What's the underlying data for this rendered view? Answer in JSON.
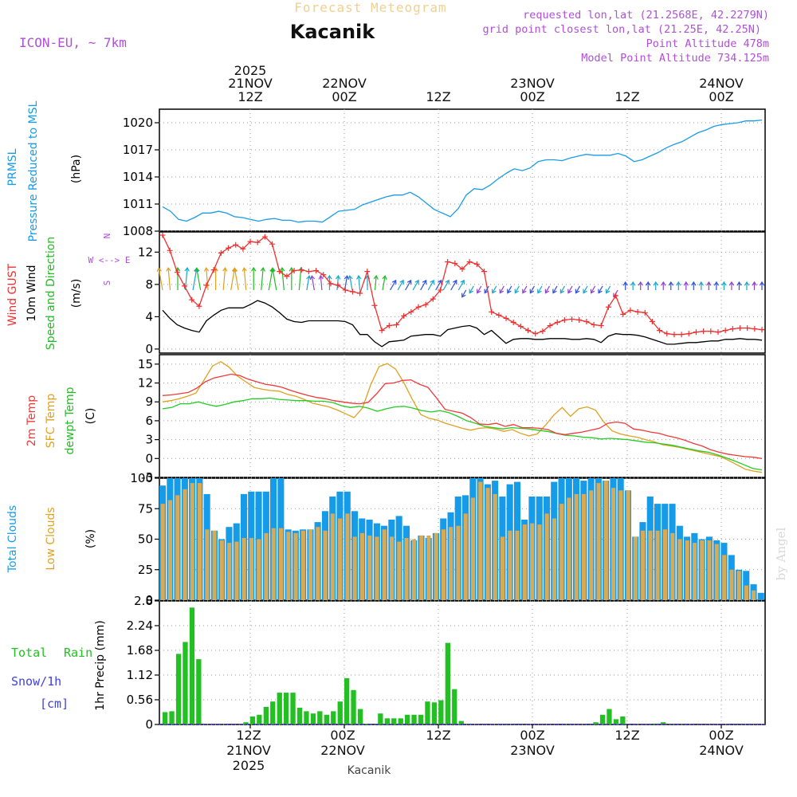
{
  "header": {
    "subtitle": "Forecast Meteogram",
    "location": "Kacanik",
    "model": "ICON-EU, ~ 7km",
    "requested": "requested lon,lat (21.2568E, 42.2279N)",
    "grid_point": "grid point closest lon,lat (21.25E, 42.25N)",
    "point_altitude": "Point Altitude 478m",
    "model_altitude": "Model Point Altitude 734.125m",
    "footer_location": "Kacanik",
    "watermark": "by Angel"
  },
  "colors": {
    "pressure": "#1a9be8",
    "gust": "#f03030",
    "wind": "#000000",
    "temp2m": "#f03a3a",
    "sfc_temp": "#e0a020",
    "dewpoint": "#22cc22",
    "total_clouds": "#169be8",
    "low_clouds": "#d9aa55",
    "rain": "#22c022",
    "snow": "#4040e0",
    "purple": "#b050d8",
    "title_yellow": "#f0d090"
  },
  "time_axis": {
    "top_labels": [
      {
        "year": "2025",
        "day": "21NOV",
        "hour": "12Z"
      },
      {
        "year": "",
        "day": "22NOV",
        "hour": "00Z"
      },
      {
        "year": "",
        "day": "",
        "hour": "12Z"
      },
      {
        "year": "",
        "day": "23NOV",
        "hour": "00Z"
      },
      {
        "year": "",
        "day": "",
        "hour": "12Z"
      },
      {
        "year": "",
        "day": "24NOV",
        "hour": "00Z"
      }
    ],
    "bottom_labels": [
      {
        "hour": "12Z",
        "day": "21NOV",
        "year": "2025"
      },
      {
        "hour": "00Z",
        "day": "22NOV",
        "year": ""
      },
      {
        "hour": "12Z",
        "day": "",
        "year": ""
      },
      {
        "hour": "00Z",
        "day": "23NOV",
        "year": ""
      },
      {
        "hour": "12Z",
        "day": "",
        "year": ""
      },
      {
        "hour": "00Z",
        "day": "24NOV",
        "year": ""
      }
    ]
  },
  "chart_data": [
    {
      "type": "line",
      "id": "pressure",
      "ylabels": [
        "PRMSL",
        "Pressure Reduced to MSL"
      ],
      "unit": "(hPa)",
      "ylim": [
        1008,
        1021.5
      ],
      "yticks": [
        1008,
        1011,
        1014,
        1017,
        1020
      ],
      "values": [
        1010.7,
        1010.2,
        1009.3,
        1009.1,
        1009.5,
        1010.0,
        1010.0,
        1010.2,
        1010.0,
        1009.6,
        1009.5,
        1009.3,
        1009.1,
        1009.3,
        1009.4,
        1009.2,
        1009.2,
        1009.0,
        1009.1,
        1009.1,
        1009.0,
        1009.6,
        1010.2,
        1010.3,
        1010.4,
        1010.9,
        1011.2,
        1011.5,
        1011.8,
        1012.0,
        1012.0,
        1012.3,
        1011.8,
        1011.1,
        1010.4,
        1010.0,
        1009.6,
        1010.5,
        1012.0,
        1012.7,
        1012.6,
        1013.1,
        1013.8,
        1014.4,
        1014.9,
        1014.7,
        1015.0,
        1015.7,
        1015.9,
        1015.9,
        1015.8,
        1016.1,
        1016.3,
        1016.5,
        1016.4,
        1016.4,
        1016.4,
        1016.6,
        1016.3,
        1015.7,
        1015.9,
        1016.3,
        1016.7,
        1017.2,
        1017.6,
        1017.9,
        1018.4,
        1018.9,
        1019.2,
        1019.6,
        1019.8,
        1019.9,
        1020.0,
        1020.2,
        1020.2,
        1020.3
      ]
    },
    {
      "type": "line",
      "id": "wind",
      "ylabels": [
        "Wind GUST",
        "10m Wind",
        "Speed and Direction"
      ],
      "unit": "(m/s)",
      "compass": {
        "north": "N",
        "south": "S",
        "west": "W <--> E"
      },
      "ylim": [
        -0.5,
        14.5
      ],
      "yticks": [
        0,
        4,
        8,
        12
      ],
      "gust": [
        14.1,
        12.2,
        9.5,
        7.8,
        6.1,
        5.3,
        7.9,
        9.8,
        11.9,
        12.5,
        12.9,
        12.4,
        13.3,
        13.2,
        13.9,
        13.0,
        9.6,
        9.0,
        9.7,
        9.8,
        9.6,
        9.7,
        9.2,
        8.1,
        7.9,
        7.3,
        7.1,
        6.9,
        9.6,
        5.4,
        2.3,
        2.9,
        3.0,
        4.1,
        4.6,
        5.2,
        5.5,
        6.2,
        7.3,
        10.8,
        10.6,
        9.9,
        10.8,
        10.5,
        9.6,
        4.6,
        4.2,
        3.8,
        3.3,
        2.8,
        2.3,
        1.9,
        2.2,
        2.9,
        3.3,
        3.6,
        3.7,
        3.6,
        3.4,
        3.0,
        2.9,
        5.2,
        6.6,
        4.3,
        4.8,
        4.6,
        4.5,
        3.4,
        2.3,
        1.9,
        1.8,
        1.8,
        1.9,
        2.1,
        2.2,
        2.2,
        2.1,
        2.3,
        2.5,
        2.6,
        2.6,
        2.5,
        2.4
      ],
      "wind": [
        4.8,
        3.8,
        3.0,
        2.6,
        2.3,
        2.1,
        3.5,
        4.2,
        4.8,
        5.1,
        5.1,
        5.1,
        5.5,
        6.0,
        5.7,
        5.2,
        4.5,
        3.7,
        3.4,
        3.3,
        3.5,
        3.5,
        3.5,
        3.5,
        3.5,
        3.4,
        3.0,
        1.8,
        1.8,
        0.9,
        0.3,
        0.9,
        1.0,
        1.1,
        1.6,
        1.7,
        1.8,
        1.8,
        1.6,
        2.4,
        2.6,
        2.8,
        2.9,
        2.6,
        1.8,
        2.3,
        1.5,
        0.7,
        1.2,
        1.3,
        1.3,
        1.2,
        1.2,
        1.3,
        1.3,
        1.3,
        1.2,
        1.2,
        1.3,
        1.2,
        0.8,
        1.6,
        1.9,
        1.8,
        1.8,
        1.7,
        1.5,
        1.2,
        0.9,
        0.6,
        0.6,
        0.7,
        0.8,
        0.8,
        0.9,
        1.0,
        1.0,
        1.2,
        1.2,
        1.3,
        1.2,
        1.2,
        1.1
      ]
    },
    {
      "type": "line",
      "id": "temperature",
      "ylabels": [
        "2m Temp",
        "SFC Temp",
        "dewpt Temp"
      ],
      "unit": "(C)",
      "ylim": [
        -3,
        16.5
      ],
      "yticks": [
        -3,
        0,
        3,
        6,
        9,
        12,
        15
      ],
      "temp2m": [
        10.0,
        10.1,
        10.3,
        10.5,
        11.2,
        12.2,
        12.8,
        13.1,
        13.4,
        13.2,
        12.6,
        12.2,
        11.8,
        11.6,
        11.3,
        10.8,
        10.4,
        10.0,
        9.7,
        9.5,
        9.2,
        9.0,
        8.8,
        8.7,
        8.9,
        10.3,
        11.9,
        12.0,
        12.4,
        12.5,
        11.8,
        11.3,
        9.6,
        7.8,
        7.5,
        7.2,
        6.5,
        5.5,
        5.4,
        5.6,
        5.1,
        5.4,
        4.9,
        4.9,
        4.8,
        4.6,
        4.0,
        3.8,
        4.0,
        4.2,
        4.5,
        4.8,
        5.6,
        5.8,
        5.6,
        4.7,
        4.5,
        4.2,
        4.0,
        3.6,
        3.3,
        2.9,
        2.4,
        2.0,
        1.4,
        1.0,
        0.7,
        0.5,
        0.3,
        0.2,
        0.0
      ],
      "sfc_temp": [
        9.0,
        9.2,
        9.5,
        9.9,
        10.4,
        12.5,
        14.7,
        15.4,
        14.5,
        13.1,
        12.2,
        11.3,
        11.0,
        10.8,
        10.7,
        10.2,
        9.9,
        9.4,
        8.8,
        8.5,
        8.2,
        7.7,
        7.1,
        6.5,
        8.0,
        11.7,
        14.6,
        15.1,
        14.2,
        12.0,
        9.4,
        7.0,
        6.4,
        6.1,
        5.6,
        5.2,
        4.8,
        4.5,
        4.8,
        4.9,
        4.7,
        4.3,
        4.6,
        4.0,
        3.6,
        3.9,
        5.3,
        6.9,
        8.1,
        6.7,
        7.9,
        8.2,
        7.7,
        5.8,
        4.4,
        3.9,
        3.6,
        3.4,
        3.0,
        2.7,
        2.2,
        2.0,
        1.8,
        1.5,
        1.2,
        0.9,
        0.6,
        0.3,
        -0.3,
        -1.0,
        -1.7,
        -2.0,
        -2.2
      ],
      "dewpoint": [
        7.9,
        8.1,
        8.7,
        8.7,
        9.0,
        8.6,
        8.3,
        8.6,
        9.0,
        9.2,
        9.5,
        9.5,
        9.6,
        9.4,
        9.3,
        9.2,
        9.2,
        9.1,
        9.1,
        8.9,
        8.4,
        8.1,
        8.3,
        8.0,
        7.5,
        7.9,
        8.2,
        8.3,
        8.0,
        7.6,
        7.4,
        7.6,
        7.3,
        6.7,
        6.0,
        5.6,
        5.1,
        4.9,
        4.7,
        4.9,
        4.8,
        4.7,
        4.5,
        4.3,
        4.0,
        3.7,
        3.6,
        3.4,
        3.3,
        3.1,
        3.2,
        3.1,
        3.0,
        2.8,
        2.6,
        2.5,
        2.3,
        2.1,
        1.8,
        1.5,
        1.2,
        1.0,
        0.6,
        0.1,
        -0.4,
        -1.0,
        -1.6,
        -1.8
      ]
    },
    {
      "type": "bar",
      "id": "clouds",
      "ylabels": [
        "Total Clouds",
        "Low Clouds"
      ],
      "unit": "(%)",
      "ylim": [
        0,
        100
      ],
      "yticks": [
        0,
        25,
        50,
        75,
        100
      ],
      "total": [
        94,
        100,
        100,
        100,
        100,
        100,
        87,
        57,
        50,
        60,
        63,
        87,
        89,
        89,
        89,
        100,
        100,
        58,
        57,
        58,
        58,
        64,
        73,
        85,
        89,
        89,
        73,
        67,
        66,
        63,
        61,
        66,
        69,
        61,
        49,
        53,
        51,
        55,
        67,
        72,
        85,
        86,
        100,
        100,
        95,
        98,
        85,
        95,
        97,
        66,
        85,
        85,
        85,
        97,
        100,
        100,
        100,
        98,
        100,
        100,
        98,
        100,
        100,
        90,
        52,
        64,
        85,
        79,
        79,
        79,
        61,
        52,
        55,
        50,
        52,
        49,
        47,
        37,
        25,
        24,
        13,
        6
      ],
      "low": [
        79,
        82,
        86,
        91,
        96,
        96,
        58,
        57,
        49,
        47,
        48,
        51,
        51,
        50,
        55,
        59,
        59,
        56,
        55,
        57,
        58,
        60,
        57,
        71,
        67,
        71,
        52,
        55,
        53,
        52,
        58,
        52,
        48,
        51,
        50,
        53,
        53,
        55,
        58,
        60,
        61,
        71,
        84,
        97,
        92,
        87,
        52,
        57,
        57,
        62,
        63,
        62,
        71,
        67,
        79,
        84,
        87,
        87,
        90,
        96,
        98,
        92,
        90,
        90,
        52,
        57,
        57,
        57,
        58,
        55,
        50,
        49,
        47,
        49,
        49,
        46,
        37,
        25,
        24,
        12,
        8
      ]
    },
    {
      "type": "bar",
      "id": "precip",
      "ylabels": [
        "1hr Precip (mm)"
      ],
      "legend": [
        "Total",
        "Rain",
        "Snow/1h",
        "[cm]"
      ],
      "ylim": [
        0,
        2.8
      ],
      "yticks": [
        0,
        0.56,
        1.12,
        1.68,
        2.24,
        2.8
      ],
      "rain": [
        0.28,
        0.3,
        1.6,
        1.87,
        2.65,
        1.48,
        0,
        0,
        0,
        0,
        0,
        0,
        0.05,
        0.18,
        0.22,
        0.4,
        0.52,
        0.72,
        0.72,
        0.72,
        0.38,
        0.3,
        0.25,
        0.3,
        0.22,
        0.3,
        0.52,
        1.05,
        0.78,
        0.35,
        0.02,
        0,
        0.25,
        0.14,
        0.14,
        0.14,
        0.22,
        0.22,
        0.22,
        0.52,
        0.5,
        0.55,
        1.85,
        0.8,
        0.08,
        0,
        0,
        0,
        0,
        0,
        0,
        0,
        0,
        0,
        0,
        0,
        0,
        0,
        0,
        0,
        0,
        0,
        0,
        0,
        0.05,
        0.22,
        0.35,
        0.12,
        0.18,
        0,
        0,
        0,
        0,
        0.02,
        0.05,
        0,
        0,
        0,
        0,
        0,
        0,
        0,
        0,
        0,
        0,
        0,
        0,
        0,
        0,
        0
      ]
    }
  ]
}
